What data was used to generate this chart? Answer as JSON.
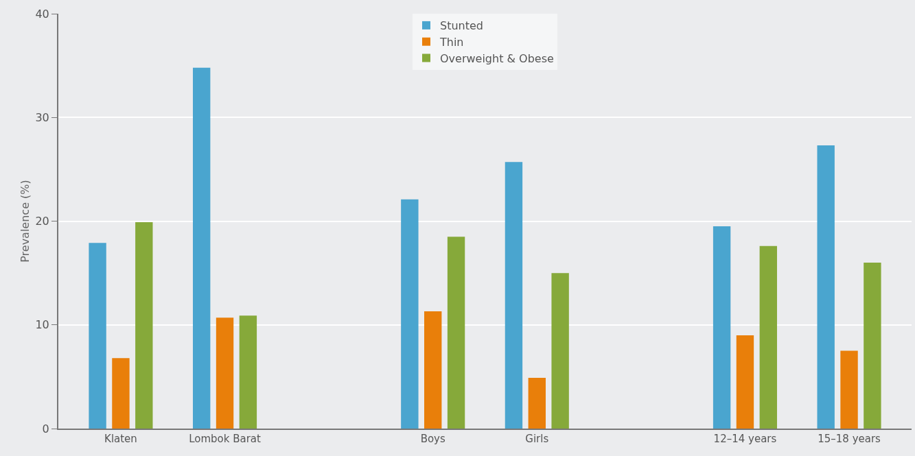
{
  "chart_data": {
    "type": "bar",
    "ylabel": "Prevalence (%)",
    "categories": [
      "Klaten",
      "Lombok Barat",
      null,
      "Boys",
      "Girls",
      null,
      "12–14 years",
      "15–18 years"
    ],
    "series": [
      {
        "name": "Stunted",
        "color": "#4aa5cf",
        "values": [
          17.9,
          34.8,
          null,
          22.1,
          25.7,
          null,
          19.5,
          27.3
        ]
      },
      {
        "name": "Thin",
        "color": "#e97f0a",
        "values": [
          6.8,
          10.7,
          null,
          11.3,
          4.9,
          null,
          9.0,
          7.5
        ]
      },
      {
        "name": "Overweight & Obese",
        "color": "#86a93a",
        "values": [
          19.9,
          10.9,
          null,
          18.5,
          15.0,
          null,
          17.6,
          16.0
        ]
      }
    ],
    "ylim": [
      0,
      40
    ],
    "yticks": [
      0,
      10,
      20,
      30,
      40
    ],
    "grid": "y",
    "legend": "top"
  }
}
